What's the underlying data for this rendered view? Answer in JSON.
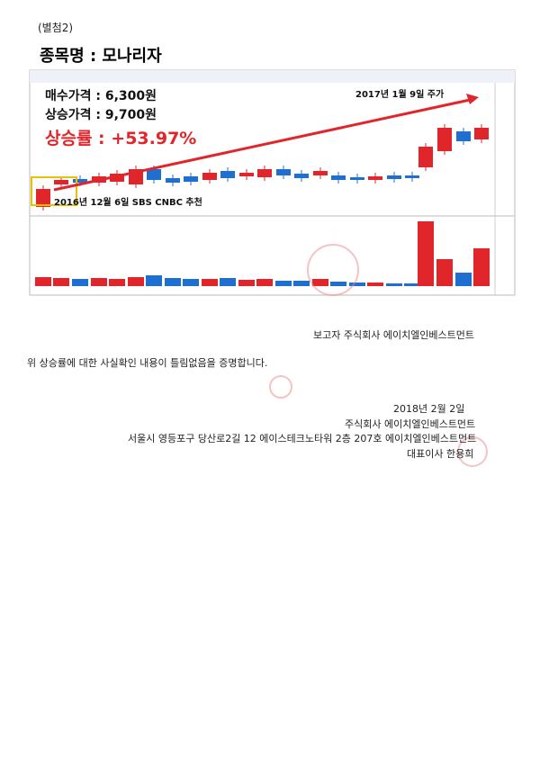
{
  "attachment": "(별첨2)",
  "stock_title": "종목명 : 모나리자",
  "screenshot": {
    "buy_price": "매수가격 : 6,300원",
    "rise_price": "상승가격 : 9,700원",
    "rise_rate": "상승률 : +53.97%",
    "end_label": "2017년 1월 9일 주가",
    "start_label": "2016년 12월 6일 SBS CNBC 추천"
  },
  "reporter": "보고자 주식회사 에이치엘인베스트먼트",
  "certification": "위 상승률에 대한 사실확인 내용이 틀림없음을 증명합니다.",
  "signature": {
    "date": "2018년 2월 2일",
    "company": "주식회사 에이치엘인베스트먼트",
    "address": "서울시 영등포구 당산로2길 12 에이스테크노타워 2층 207호 에이치엘인베스트먼트",
    "ceo": "대표이사 한용희"
  }
}
